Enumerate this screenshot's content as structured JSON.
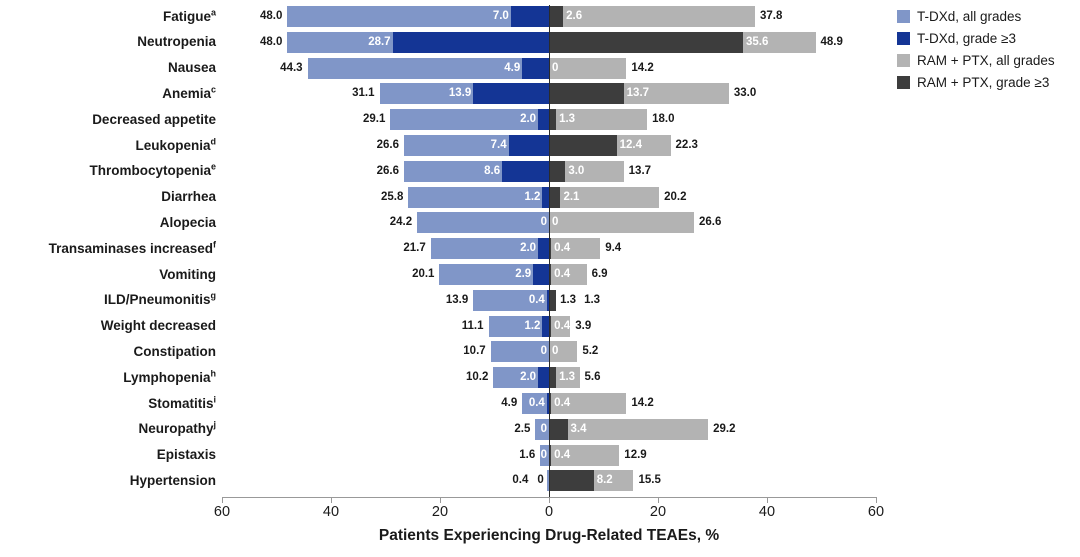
{
  "colors": {
    "tdxd_all": "#8096c8",
    "tdxd_g3": "#143595",
    "ram_all": "#b3b3b3",
    "ram_g3": "#3d3d3d",
    "axis": "#999999",
    "zero_line": "#2b2b2b",
    "text": "#1a1a1a",
    "value_inside": "#ffffff"
  },
  "chart_data": {
    "type": "bar",
    "variant": "diverging-tornado",
    "title": "",
    "xlabel": "Patients Experiencing Drug-Related TEAEs, %",
    "axis": {
      "xlim": [
        -60,
        60
      ],
      "tick_values": [
        -60,
        -40,
        -20,
        0,
        20,
        40,
        60
      ],
      "tick_labels": [
        "60",
        "40",
        "20",
        "0",
        "20",
        "40",
        "60"
      ],
      "grid": false
    },
    "legend_position": "top-right",
    "legend": [
      {
        "id": "tdxd_all",
        "label": "T-DXd, all grades"
      },
      {
        "id": "tdxd_g3",
        "label": "T-DXd, grade ≥3"
      },
      {
        "id": "ram_all",
        "label": "RAM + PTX, all grades"
      },
      {
        "id": "ram_g3",
        "label": "RAM + PTX, grade ≥3"
      }
    ],
    "series_note": "left side = T-DXd (all grades light blue, grade >=3 dark blue); right side = RAM + PTX (all grades light gray, grade >=3 dark gray); values are % of patients",
    "rows": [
      {
        "label": "Fatigue",
        "sup": "a",
        "tdxd_all": "48.0",
        "tdxd_g3": "7.0",
        "ram_g3": "2.6",
        "ram_all": "37.8"
      },
      {
        "label": "Neutropenia",
        "sup": "",
        "tdxd_all": "48.0",
        "tdxd_g3": "28.7",
        "ram_g3": "35.6",
        "ram_all": "48.9"
      },
      {
        "label": "Nausea",
        "sup": "",
        "tdxd_all": "44.3",
        "tdxd_g3": "4.9",
        "ram_g3": "0",
        "ram_all": "14.2"
      },
      {
        "label": "Anemia",
        "sup": "c",
        "tdxd_all": "31.1",
        "tdxd_g3": "13.9",
        "ram_g3": "13.7",
        "ram_all": "33.0"
      },
      {
        "label": "Decreased appetite",
        "sup": "",
        "tdxd_all": "29.1",
        "tdxd_g3": "2.0",
        "ram_g3": "1.3",
        "ram_all": "18.0"
      },
      {
        "label": "Leukopenia",
        "sup": "d",
        "tdxd_all": "26.6",
        "tdxd_g3": "7.4",
        "ram_g3": "12.4",
        "ram_all": "22.3"
      },
      {
        "label": "Thrombocytopenia",
        "sup": "e",
        "tdxd_all": "26.6",
        "tdxd_g3": "8.6",
        "ram_g3": "3.0",
        "ram_all": "13.7"
      },
      {
        "label": "Diarrhea",
        "sup": "",
        "tdxd_all": "25.8",
        "tdxd_g3": "1.2",
        "ram_g3": "2.1",
        "ram_all": "20.2"
      },
      {
        "label": "Alopecia",
        "sup": "",
        "tdxd_all": "24.2",
        "tdxd_g3": "0",
        "ram_g3": "0",
        "ram_all": "26.6"
      },
      {
        "label": "Transaminases increased",
        "sup": "f",
        "tdxd_all": "21.7",
        "tdxd_g3": "2.0",
        "ram_g3": "0.4",
        "ram_all": "9.4"
      },
      {
        "label": "Vomiting",
        "sup": "",
        "tdxd_all": "20.1",
        "tdxd_g3": "2.9",
        "ram_g3": "0.4",
        "ram_all": "6.9"
      },
      {
        "label": "ILD/Pneumonitis",
        "sup": "g",
        "tdxd_all": "13.9",
        "tdxd_g3": "0.4",
        "ram_g3": "1.3",
        "ram_all": "1.3"
      },
      {
        "label": "Weight decreased",
        "sup": "",
        "tdxd_all": "11.1",
        "tdxd_g3": "1.2",
        "ram_g3": "0.4",
        "ram_all": "3.9"
      },
      {
        "label": "Constipation",
        "sup": "",
        "tdxd_all": "10.7",
        "tdxd_g3": "0",
        "ram_g3": "0",
        "ram_all": "5.2"
      },
      {
        "label": "Lymphopenia",
        "sup": "h",
        "tdxd_all": "10.2",
        "tdxd_g3": "2.0",
        "ram_g3": "1.3",
        "ram_all": "5.6"
      },
      {
        "label": "Stomatitis",
        "sup": "i",
        "tdxd_all": "4.9",
        "tdxd_g3": "0.4",
        "ram_g3": "0.4",
        "ram_all": "14.2"
      },
      {
        "label": "Neuropathy",
        "sup": "j",
        "tdxd_all": "2.5",
        "tdxd_g3": "0",
        "ram_g3": "3.4",
        "ram_all": "29.2"
      },
      {
        "label": "Epistaxis",
        "sup": "",
        "tdxd_all": "1.6",
        "tdxd_g3": "0",
        "ram_g3": "0.4",
        "ram_all": "12.9"
      },
      {
        "label": "Hypertension",
        "sup": "",
        "tdxd_all": "0.4",
        "tdxd_g3": "0",
        "ram_g3": "8.2",
        "ram_all": "15.5"
      }
    ]
  }
}
